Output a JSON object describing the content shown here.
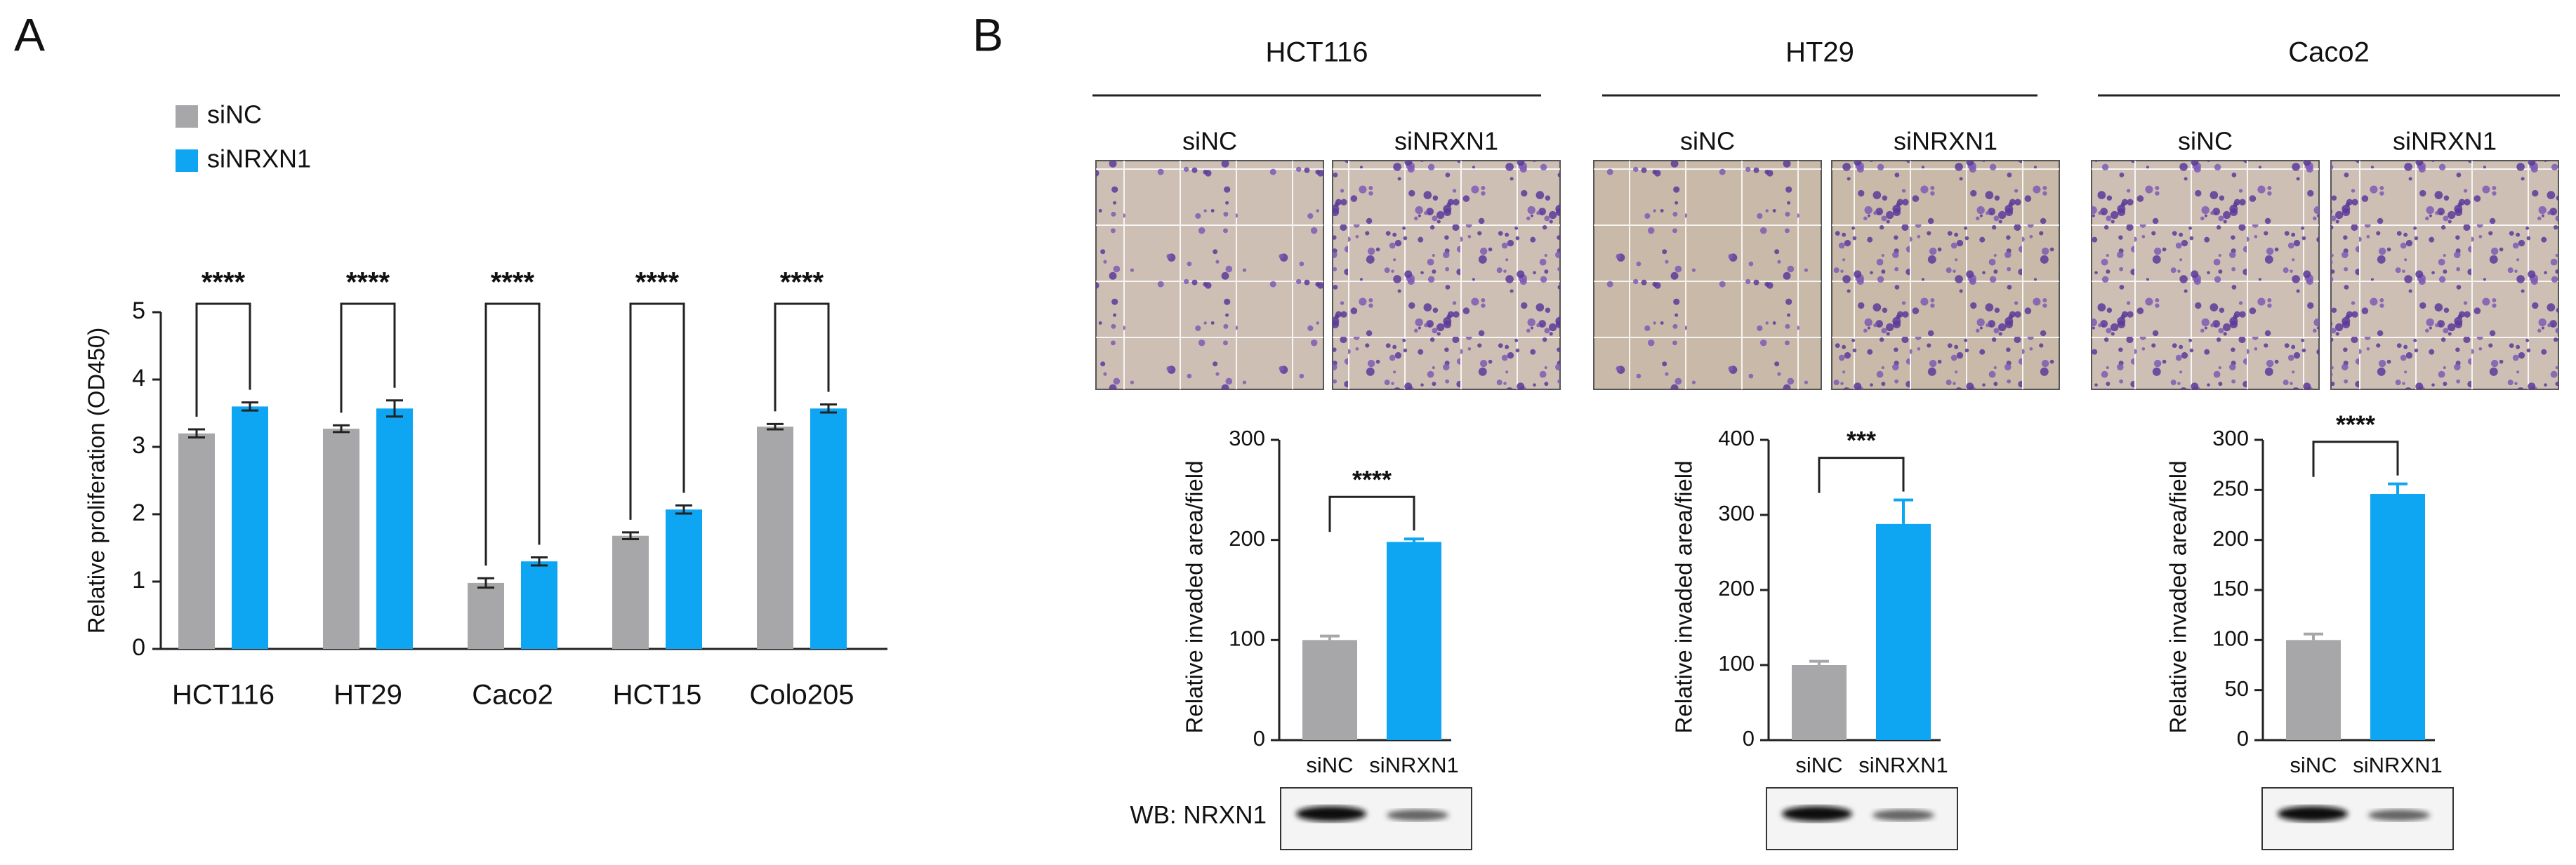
{
  "panel_labels": [
    "A",
    "B"
  ],
  "chart_data": [
    {
      "type": "grouped-bar",
      "ylabel": "Relative proliferation (OD450)",
      "categories": [
        "HCT116",
        "HT29",
        "Caco2",
        "HCT15",
        "Colo205"
      ],
      "series": [
        {
          "name": "siNC",
          "color": "#a7a7a9",
          "values": [
            3.2,
            3.27,
            0.98,
            1.68,
            3.3
          ],
          "errors": [
            0.06,
            0.05,
            0.07,
            0.05,
            0.04
          ]
        },
        {
          "name": "siNRXN1",
          "color": "#0ea5f2",
          "values": [
            3.6,
            3.57,
            1.3,
            2.07,
            3.57
          ],
          "errors": [
            0.06,
            0.12,
            0.06,
            0.06,
            0.06
          ]
        }
      ],
      "ylim": [
        0,
        5
      ],
      "yticks": [
        0,
        1,
        2,
        3,
        4,
        5
      ],
      "significance": [
        "****",
        "****",
        "****",
        "****",
        "****"
      ]
    },
    {
      "type": "bar",
      "title": "HCT116",
      "image_labels": [
        "siNC",
        "siNRXN1"
      ],
      "ylabel": "Relative invaded area/field",
      "categories": [
        "siNC",
        "siNRXN1"
      ],
      "values": [
        100,
        198
      ],
      "errors": [
        4,
        3
      ],
      "colors": [
        "#a7a7a9",
        "#0ea5f2"
      ],
      "ylim": [
        0,
        300
      ],
      "yticks": [
        0,
        100,
        200,
        300
      ],
      "significance": "****",
      "blot_label": "WB: NRXN1"
    },
    {
      "type": "bar",
      "title": "HT29",
      "image_labels": [
        "siNC",
        "siNRXN1"
      ],
      "ylabel": "Relative invaded area/field",
      "categories": [
        "siNC",
        "siNRXN1"
      ],
      "values": [
        100,
        288
      ],
      "errors": [
        5,
        32
      ],
      "colors": [
        "#a7a7a9",
        "#0ea5f2"
      ],
      "ylim": [
        0,
        400
      ],
      "yticks": [
        0,
        100,
        200,
        300,
        400
      ],
      "significance": "***"
    },
    {
      "type": "bar",
      "title": "Caco2",
      "image_labels": [
        "siNC",
        "siNRXN1"
      ],
      "ylabel": "Relative invaded area/field",
      "categories": [
        "siNC",
        "siNRXN1"
      ],
      "values": [
        100,
        246
      ],
      "errors": [
        6,
        10
      ],
      "colors": [
        "#a7a7a9",
        "#0ea5f2"
      ],
      "ylim": [
        0,
        300
      ],
      "yticks": [
        0,
        50,
        100,
        150,
        200,
        250,
        300
      ],
      "significance": "****"
    }
  ]
}
